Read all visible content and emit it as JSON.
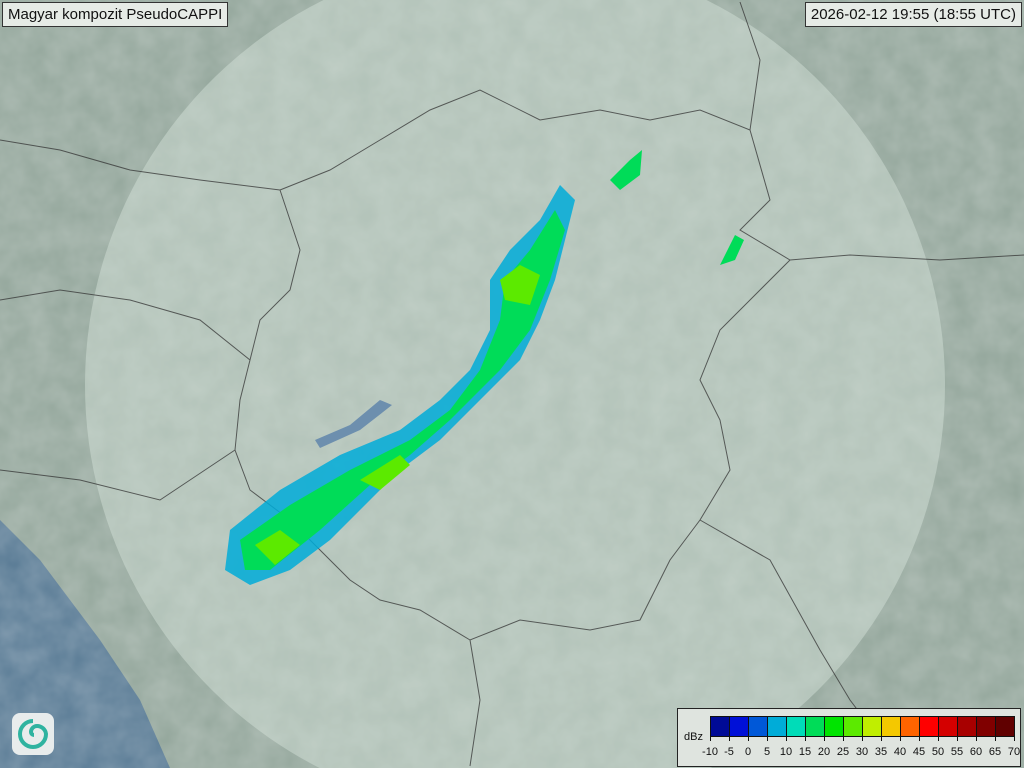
{
  "header": {
    "title": "Magyar kompozit  PseudoCAPPI",
    "timestamp": "2026-02-12 19:55 (18:55 UTC)"
  },
  "legend": {
    "unit": "dBz",
    "ticks": [
      "-10",
      "-5",
      "0",
      "5",
      "10",
      "15",
      "20",
      "25",
      "30",
      "35",
      "40",
      "45",
      "50",
      "55",
      "60",
      "65",
      "70"
    ],
    "colors": [
      "#000a96",
      "#0010d8",
      "#0058d8",
      "#00acd8",
      "#00dcb8",
      "#00dc58",
      "#00e400",
      "#5cea00",
      "#c0ee00",
      "#f4c800",
      "#ff6400",
      "#ff0000",
      "#d40000",
      "#a80000",
      "#800000",
      "#600000"
    ]
  },
  "logo": {
    "icon": "met-service-swirl-logo"
  },
  "map": {
    "land_color": "#93a69b",
    "coverage_color": "#b9c9bf",
    "sea_color": "#587a94"
  }
}
